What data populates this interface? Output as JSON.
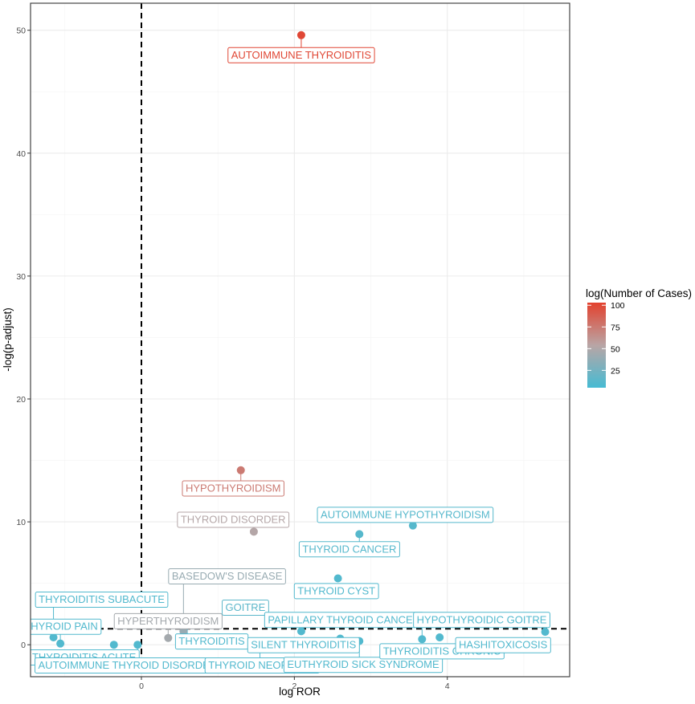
{
  "chart_data": {
    "type": "scatter",
    "title": "",
    "xlabel": "log ROR",
    "ylabel": "-log(p-adjust)",
    "xlim": [
      -1.45,
      5.6
    ],
    "ylim": [
      -2.6,
      52.2
    ],
    "x_ticks": [
      0,
      2,
      4
    ],
    "y_ticks": [
      0,
      10,
      20,
      30,
      40,
      50
    ],
    "grid": true,
    "reference_lines": {
      "vertical_x": 0,
      "horizontal_y": 1.3
    },
    "legend": {
      "title": "log(Number of Cases)",
      "placement": "right",
      "ticks": [
        25,
        50,
        75,
        100
      ],
      "min": 5,
      "max": 103,
      "color_low": "#46BBD3",
      "color_mid": "#B9A5A5",
      "color_high": "#E3412E"
    },
    "points": [
      {
        "label": "AUTOIMMUNE THYROIDITIS",
        "x": 2.09,
        "y": 49.6,
        "cases": 100
      },
      {
        "label": "HYPOTHYROIDISM",
        "x": 1.3,
        "y": 14.2,
        "cases": 75
      },
      {
        "label": "THYROID DISORDER",
        "x": 1.47,
        "y": 9.2,
        "cases": 52
      },
      {
        "label": "AUTOIMMUNE HYPOTHYROIDISM",
        "x": 3.55,
        "y": 9.7,
        "cases": 12
      },
      {
        "label": "THYROID CANCER",
        "x": 2.85,
        "y": 9.0,
        "cases": 12
      },
      {
        "label": "THYROID CYST",
        "x": 2.57,
        "y": 5.4,
        "cases": 10
      },
      {
        "label": "BASEDOW'S DISEASE",
        "x": 0.55,
        "y": 1.1,
        "cases": 40
      },
      {
        "label": "HYPERTHYROIDISM",
        "x": 0.35,
        "y": 0.55,
        "cases": 45
      },
      {
        "label": "GOITRE",
        "x": 0.95,
        "y": 2.0,
        "cases": 15
      },
      {
        "label": "THYROIDITIS SUBACUTE",
        "x": -1.15,
        "y": 0.6,
        "cases": 10
      },
      {
        "label": "THYROID PAIN",
        "x": -1.06,
        "y": 0.1,
        "cases": 10
      },
      {
        "label": "THYROIDITIS ACUTE",
        "x": -0.36,
        "y": 0.0,
        "cases": 10
      },
      {
        "label": "AUTOIMMUNE THYROID DISORDER",
        "x": -0.05,
        "y": 0.0,
        "cases": 10
      },
      {
        "label": "THYROIDITIS",
        "x": 0.6,
        "y": 1.9,
        "cases": 10
      },
      {
        "label": "THYROID NEOPLASM",
        "x": 1.55,
        "y": 0.1,
        "cases": 10
      },
      {
        "label": "PAPILLARY THYROID CANCER",
        "x": 2.09,
        "y": 1.1,
        "cases": 10
      },
      {
        "label": "SILENT THYROIDITIS",
        "x": 2.6,
        "y": 0.5,
        "cases": 10
      },
      {
        "label": "EUTHYROID SICK SYNDROME",
        "x": 2.85,
        "y": 0.3,
        "cases": 10
      },
      {
        "label": "HYPOTHYROIDIC GOITRE",
        "x": 3.67,
        "y": 0.45,
        "cases": 10
      },
      {
        "label": "THYROIDITIS CHRONIC",
        "x": 3.9,
        "y": 0.6,
        "cases": 10
      },
      {
        "label": "HASHITOXICOSIS",
        "x": 5.28,
        "y": 1.05,
        "cases": 10
      }
    ],
    "labels": [
      {
        "text": "AUTOIMMUNE THYROIDITIS",
        "x": 2.09,
        "y": 48.0,
        "cases": 100,
        "point": 0
      },
      {
        "text": "HYPOTHYROIDISM",
        "x": 1.2,
        "y": 12.75,
        "cases": 75,
        "point": 1
      },
      {
        "text": "THYROID DISORDER",
        "x": 1.2,
        "y": 10.2,
        "cases": 52,
        "point": 2
      },
      {
        "text": "AUTOIMMUNE HYPOTHYROIDISM",
        "x": 3.45,
        "y": 10.6,
        "cases": 12,
        "point": 3
      },
      {
        "text": "THYROID CANCER",
        "x": 2.72,
        "y": 7.8,
        "cases": 12,
        "point": 4
      },
      {
        "text": "THYROID CYST",
        "x": 2.55,
        "y": 4.4,
        "cases": 10,
        "point": 5
      },
      {
        "text": "BASEDOW'S DISEASE",
        "x": 1.12,
        "y": 5.6,
        "cases": 40,
        "point": 6
      },
      {
        "text": "HYPERTHYROIDISM",
        "x": 0.35,
        "y": 1.95,
        "cases": 45,
        "point": 7
      },
      {
        "text": "GOITRE",
        "x": 1.36,
        "y": 3.05,
        "cases": 15,
        "point": 8
      },
      {
        "text": "THYROIDITIS SUBACUTE",
        "x": -0.52,
        "y": 3.7,
        "cases": 10,
        "point": 9
      },
      {
        "text": "THYROID PAIN",
        "x": -1.05,
        "y": 1.5,
        "cases": 10,
        "point": 10
      },
      {
        "text": "THYROIDITIS ACUTE",
        "x": -0.75,
        "y": -1.0,
        "cases": 10,
        "point": 11
      },
      {
        "text": "AUTOIMMUNE THYROID DISORDER",
        "x": -0.18,
        "y": -1.65,
        "cases": 10,
        "point": 12
      },
      {
        "text": "THYROIDITIS",
        "x": 0.92,
        "y": 0.3,
        "cases": 10,
        "point": 13
      },
      {
        "text": "THYROID NEOPLASM",
        "x": 1.58,
        "y": -1.65,
        "cases": 10,
        "point": 14
      },
      {
        "text": "PAPILLARY THYROID CANCER",
        "x": 2.65,
        "y": 2.05,
        "cases": 10,
        "point": 15
      },
      {
        "text": "SILENT THYROIDITIS",
        "x": 2.12,
        "y": 0.0,
        "cases": 10,
        "point": 16
      },
      {
        "text": "EUTHYROID SICK SYNDROME",
        "x": 2.9,
        "y": -1.6,
        "cases": 10,
        "point": 17
      },
      {
        "text": "HYPOTHYROIDIC GOITRE",
        "x": 4.45,
        "y": 2.05,
        "cases": 10,
        "point": 18
      },
      {
        "text": "THYROIDITIS CHRONIC",
        "x": 3.93,
        "y": -0.5,
        "cases": 10,
        "point": 19
      },
      {
        "text": "HASHITOXICOSIS",
        "x": 4.73,
        "y": 0.0,
        "cases": 10,
        "point": 20
      }
    ]
  }
}
